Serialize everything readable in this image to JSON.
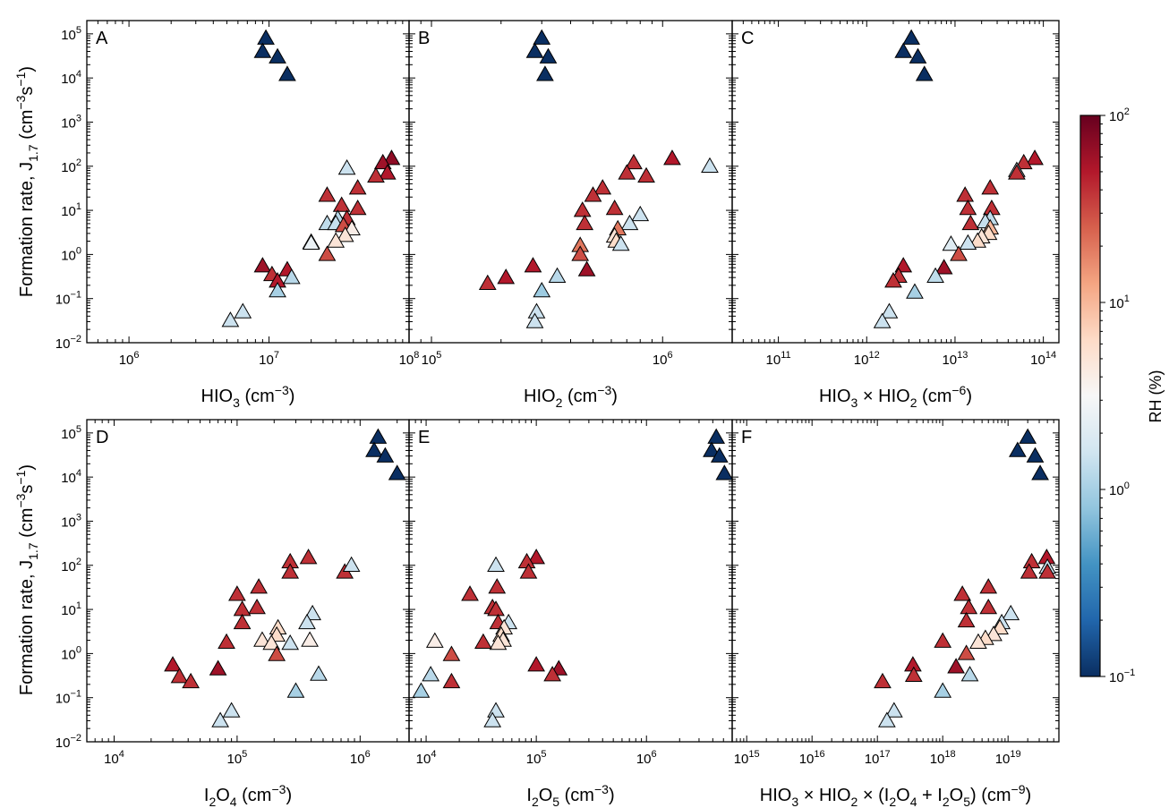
{
  "figure": {
    "ylabel": "Formation  rate, J",
    "ylabel_sub": "1.7",
    "ylabel_unit_open": " (cm",
    "ylabel_unit_exp1": "−3",
    "ylabel_unit_mid": "s",
    "ylabel_unit_exp2": "−1",
    "ylabel_unit_close": ")",
    "colorbar": {
      "label": "RH (%)",
      "scale": "log",
      "range": [
        0.1,
        100
      ],
      "ticks": [
        {
          "value": 0.1,
          "base": "10",
          "exp": "−1"
        },
        {
          "value": 1,
          "base": "10",
          "exp": "0"
        },
        {
          "value": 10,
          "base": "10",
          "exp": "1"
        },
        {
          "value": 100,
          "base": "10",
          "exp": "2"
        }
      ],
      "colormap": "RdBu_r",
      "colors": [
        "#0a2e61",
        "#2166ac",
        "#4393c3",
        "#92c5de",
        "#d1e5f0",
        "#f7f7f7",
        "#fddbc7",
        "#f4a582",
        "#d6604d",
        "#b2182b",
        "#67001f"
      ]
    },
    "colors": {
      "marker_edge": "#000000",
      "axis": "#000000"
    }
  },
  "chart_data": [
    {
      "type": "scatter",
      "panel_label": "A",
      "xlabel": [
        {
          "t": "HIO"
        },
        {
          "t": "3",
          "sub": true
        },
        {
          "t": " (cm"
        },
        {
          "t": "−3",
          "sup": true
        },
        {
          "t": ")"
        }
      ],
      "xscale": "log",
      "xlim": [
        500000,
        100000000
      ],
      "xticks": [
        {
          "value": 1000000,
          "exp": "6"
        },
        {
          "value": 10000000,
          "exp": "7"
        },
        {
          "value": 100000000,
          "exp": "8"
        }
      ],
      "yscale": "log",
      "ylim": [
        0.01,
        200000
      ],
      "points": [
        [
          9500000.0,
          80000,
          0.1
        ],
        [
          9000000.0,
          40000,
          0.1
        ],
        [
          11500000.0,
          30000,
          0.1
        ],
        [
          13500000.0,
          12000,
          0.1
        ],
        [
          75000000.0,
          150,
          70
        ],
        [
          65000000.0,
          120,
          60
        ],
        [
          70000000.0,
          70,
          50
        ],
        [
          58000000.0,
          60,
          40
        ],
        [
          36000000.0,
          90,
          1.5
        ],
        [
          43000000.0,
          32,
          40
        ],
        [
          26000000.0,
          22,
          40
        ],
        [
          33000000.0,
          13,
          40
        ],
        [
          43000000.0,
          11,
          40
        ],
        [
          36000000.0,
          6.5,
          40
        ],
        [
          31000000.0,
          6.5,
          1.2
        ],
        [
          26000000.0,
          5,
          1.3
        ],
        [
          30000000.0,
          5,
          1.4
        ],
        [
          34000000.0,
          4.5,
          30
        ],
        [
          39000000.0,
          3.8,
          4
        ],
        [
          35000000.0,
          2.7,
          5
        ],
        [
          30000000.0,
          2.0,
          5
        ],
        [
          20000000.0,
          1.9,
          40
        ],
        [
          20000000.0,
          1.8,
          2.5
        ],
        [
          26000000.0,
          1.0,
          30
        ],
        [
          9000000.0,
          0.55,
          60
        ],
        [
          13500000.0,
          0.45,
          50
        ],
        [
          10500000.0,
          0.35,
          40
        ],
        [
          11500000.0,
          0.25,
          50
        ],
        [
          14500000.0,
          0.3,
          1.2
        ],
        [
          11500000.0,
          0.15,
          1.0
        ],
        [
          6500000.0,
          0.05,
          1.5
        ],
        [
          5300000.0,
          0.032,
          1.5
        ]
      ]
    },
    {
      "type": "scatter",
      "panel_label": "B",
      "xlabel": [
        {
          "t": "HIO"
        },
        {
          "t": "2",
          "sub": true
        },
        {
          "t": " (cm"
        },
        {
          "t": "−3",
          "sup": true
        },
        {
          "t": ")"
        }
      ],
      "xscale": "log",
      "xlim": [
        80000,
        2000000
      ],
      "xticks": [
        {
          "value": 100000,
          "exp": "5"
        },
        {
          "value": 1000000,
          "exp": "6"
        }
      ],
      "yscale": "log",
      "ylim": [
        0.01,
        200000
      ],
      "points": [
        [
          300000,
          80000,
          0.1
        ],
        [
          280000,
          40000,
          0.1
        ],
        [
          320000,
          30000,
          0.1
        ],
        [
          310000,
          12000,
          0.1
        ],
        [
          1100000,
          150,
          50
        ],
        [
          750000,
          120,
          40
        ],
        [
          1600000,
          100,
          1.5
        ],
        [
          700000,
          70,
          40
        ],
        [
          850000,
          60,
          40
        ],
        [
          550000,
          32,
          40
        ],
        [
          500000,
          22,
          40
        ],
        [
          620000,
          11,
          40
        ],
        [
          450000,
          10,
          40
        ],
        [
          460000,
          5,
          40
        ],
        [
          800000,
          8,
          1.5
        ],
        [
          720000,
          5,
          1.5
        ],
        [
          640000,
          3.8,
          20
        ],
        [
          620000,
          2.6,
          5
        ],
        [
          630000,
          2.0,
          6
        ],
        [
          660000,
          1.7,
          1.5
        ],
        [
          440000,
          1.6,
          20
        ],
        [
          440000,
          1.0,
          30
        ],
        [
          275000,
          0.55,
          50
        ],
        [
          470000,
          0.45,
          60
        ],
        [
          210000,
          0.3,
          50
        ],
        [
          175000,
          0.22,
          40
        ],
        [
          350000,
          0.32,
          1.2
        ],
        [
          300000,
          0.15,
          0.9
        ],
        [
          285000,
          0.05,
          1.5
        ],
        [
          280000,
          0.03,
          1.5
        ]
      ]
    },
    {
      "type": "scatter",
      "panel_label": "C",
      "xlabel": [
        {
          "t": "HIO"
        },
        {
          "t": "3",
          "sub": true
        },
        {
          "t": " × HIO"
        },
        {
          "t": "2",
          "sub": true
        },
        {
          "t": " (cm"
        },
        {
          "t": "−6",
          "sup": true
        },
        {
          "t": ")"
        }
      ],
      "xscale": "log",
      "xlim": [
        30000000000,
        150000000000000
      ],
      "xticks": [
        {
          "value": 100000000000.0,
          "exp": "11"
        },
        {
          "value": 1000000000000.0,
          "exp": "12"
        },
        {
          "value": 10000000000000.0,
          "exp": "13"
        },
        {
          "value": 100000000000000.0,
          "exp": "14"
        }
      ],
      "yscale": "log",
      "ylim": [
        0.01,
        200000
      ],
      "points": [
        [
          3200000000000.0,
          80000,
          0.1
        ],
        [
          2600000000000.0,
          40000,
          0.1
        ],
        [
          3800000000000.0,
          30000,
          0.1
        ],
        [
          4500000000000.0,
          12000,
          0.1
        ],
        [
          80000000000000.0,
          150,
          50
        ],
        [
          60000000000000.0,
          120,
          40
        ],
        [
          50000000000000.0,
          80,
          1.5
        ],
        [
          50000000000000.0,
          70,
          40
        ],
        [
          25000000000000.0,
          32,
          40
        ],
        [
          13000000000000.0,
          22,
          40
        ],
        [
          14000000000000.0,
          11,
          40
        ],
        [
          26000000000000.0,
          11,
          40
        ],
        [
          25000000000000.0,
          6.5,
          1.3
        ],
        [
          22000000000000.0,
          5.5,
          1.4
        ],
        [
          15000000000000.0,
          5,
          40
        ],
        [
          25000000000000.0,
          4.0,
          10
        ],
        [
          24000000000000.0,
          3.0,
          6
        ],
        [
          20000000000000.0,
          2.5,
          5
        ],
        [
          18000000000000.0,
          2.0,
          6
        ],
        [
          14000000000000.0,
          1.8,
          1.5
        ],
        [
          9000000000000.0,
          1.7,
          2.0
        ],
        [
          11000000000000.0,
          1.0,
          30
        ],
        [
          2600000000000.0,
          0.55,
          50
        ],
        [
          2300000000000.0,
          0.32,
          40
        ],
        [
          2000000000000.0,
          0.25,
          40
        ],
        [
          7500000000000.0,
          0.5,
          60
        ],
        [
          6000000000000.0,
          0.32,
          1.3
        ],
        [
          3500000000000.0,
          0.14,
          1.0
        ],
        [
          1800000000000.0,
          0.05,
          1.5
        ],
        [
          1500000000000.0,
          0.03,
          1.5
        ]
      ]
    },
    {
      "type": "scatter",
      "panel_label": "D",
      "xlabel": [
        {
          "t": "I"
        },
        {
          "t": "2",
          "sub": true
        },
        {
          "t": "O"
        },
        {
          "t": "4",
          "sub": true
        },
        {
          "t": " (cm"
        },
        {
          "t": "−3",
          "sup": true
        },
        {
          "t": ")"
        }
      ],
      "xscale": "log",
      "xlim": [
        6000,
        2500000
      ],
      "xticks": [
        {
          "value": 10000,
          "exp": "4"
        },
        {
          "value": 100000,
          "exp": "5"
        },
        {
          "value": 1000000,
          "exp": "6"
        }
      ],
      "yscale": "log",
      "ylim": [
        0.01,
        200000
      ],
      "points": [
        [
          1400000,
          80000,
          0.1
        ],
        [
          1300000,
          40000,
          0.1
        ],
        [
          1600000,
          30000,
          0.1
        ],
        [
          2000000,
          12000,
          0.1
        ],
        [
          380000,
          150,
          40
        ],
        [
          270000,
          120,
          40
        ],
        [
          270000,
          70,
          40
        ],
        [
          750000,
          70,
          40
        ],
        [
          850000,
          100,
          1.5
        ],
        [
          150000,
          32,
          40
        ],
        [
          100000,
          22,
          40
        ],
        [
          145000,
          11,
          40
        ],
        [
          110000,
          10,
          40
        ],
        [
          110000,
          5,
          40
        ],
        [
          410000,
          8,
          1.5
        ],
        [
          370000,
          5,
          1.5
        ],
        [
          215000,
          3.8,
          6
        ],
        [
          210000,
          2.6,
          6
        ],
        [
          160000,
          2.0,
          5
        ],
        [
          190000,
          1.7,
          5
        ],
        [
          270000,
          1.7,
          1.5
        ],
        [
          390000,
          2.0,
          4
        ],
        [
          82000,
          1.8,
          40
        ],
        [
          210000,
          0.95,
          30
        ],
        [
          30000,
          0.55,
          50
        ],
        [
          70000,
          0.45,
          60
        ],
        [
          34000,
          0.3,
          40
        ],
        [
          42000,
          0.23,
          40
        ],
        [
          460000,
          0.34,
          1.2
        ],
        [
          300000,
          0.14,
          1.0
        ],
        [
          90000,
          0.05,
          1.5
        ],
        [
          73000,
          0.03,
          1.5
        ]
      ]
    },
    {
      "type": "scatter",
      "panel_label": "E",
      "xlabel": [
        {
          "t": "I"
        },
        {
          "t": "2",
          "sub": true
        },
        {
          "t": "O"
        },
        {
          "t": "5",
          "sub": true
        },
        {
          "t": " (cm"
        },
        {
          "t": "−3",
          "sup": true
        },
        {
          "t": ")"
        }
      ],
      "xscale": "log",
      "xlim": [
        7000,
        6000000
      ],
      "xticks": [
        {
          "value": 10000,
          "exp": "4"
        },
        {
          "value": 100000,
          "exp": "5"
        },
        {
          "value": 1000000,
          "exp": "6"
        }
      ],
      "yscale": "log",
      "ylim": [
        0.01,
        200000
      ],
      "points": [
        [
          4300000,
          80000,
          0.1
        ],
        [
          3900000,
          40000,
          0.1
        ],
        [
          4600000,
          30000,
          0.1
        ],
        [
          5100000,
          12000,
          0.1
        ],
        [
          100000,
          150,
          50
        ],
        [
          82000,
          120,
          40
        ],
        [
          85000,
          70,
          40
        ],
        [
          43000,
          100,
          1.5
        ],
        [
          44000,
          32,
          40
        ],
        [
          25000,
          22,
          40
        ],
        [
          40000,
          11,
          40
        ],
        [
          43000,
          10,
          40
        ],
        [
          45000,
          5,
          40
        ],
        [
          56000,
          5,
          1.5
        ],
        [
          51000,
          3.8,
          5
        ],
        [
          48000,
          2.6,
          6
        ],
        [
          50000,
          2.0,
          5
        ],
        [
          45000,
          1.7,
          5
        ],
        [
          12000,
          1.9,
          4
        ],
        [
          33000,
          1.8,
          40
        ],
        [
          17000,
          0.95,
          30
        ],
        [
          100000,
          0.55,
          50
        ],
        [
          160000,
          0.45,
          60
        ],
        [
          140000,
          0.33,
          40
        ],
        [
          17000,
          0.23,
          40
        ],
        [
          11000,
          0.33,
          1.2
        ],
        [
          9000,
          0.14,
          1.0
        ],
        [
          43000,
          0.05,
          1.5
        ],
        [
          40000,
          0.03,
          1.5
        ]
      ]
    },
    {
      "type": "scatter",
      "panel_label": "F",
      "xlabel": [
        {
          "t": "HIO"
        },
        {
          "t": "3",
          "sub": true
        },
        {
          "t": " × HIO"
        },
        {
          "t": "2",
          "sub": true
        },
        {
          "t": " × (I"
        },
        {
          "t": "2",
          "sub": true
        },
        {
          "t": "O"
        },
        {
          "t": "4",
          "sub": true
        },
        {
          "t": " + I"
        },
        {
          "t": "2",
          "sub": true
        },
        {
          "t": "O"
        },
        {
          "t": "5",
          "sub": true
        },
        {
          "t": ") (cm"
        },
        {
          "t": "−9",
          "sup": true
        },
        {
          "t": ")"
        }
      ],
      "xscale": "log",
      "xlim": [
        600000000000000.0,
        6e+19
      ],
      "xticks": [
        {
          "value": 1000000000000000.0,
          "exp": "15"
        },
        {
          "value": 1e+16,
          "exp": "16"
        },
        {
          "value": 1e+17,
          "exp": "17"
        },
        {
          "value": 1e+18,
          "exp": "18"
        },
        {
          "value": 1e+19,
          "exp": "19"
        }
      ],
      "yscale": "log",
      "ylim": [
        0.01,
        200000
      ],
      "points": [
        [
          2e+19,
          80000,
          0.1
        ],
        [
          1.4e+19,
          40000,
          0.1
        ],
        [
          2.6e+19,
          30000,
          0.1
        ],
        [
          3.1e+19,
          12000,
          0.1
        ],
        [
          3.9e+19,
          150,
          50
        ],
        [
          2.3e+19,
          120,
          40
        ],
        [
          4e+19,
          90,
          1.5
        ],
        [
          2.1e+19,
          70,
          40
        ],
        [
          4e+19,
          70,
          40
        ],
        [
          5e+18,
          32,
          40
        ],
        [
          2e+18,
          22,
          40
        ],
        [
          2.5e+18,
          11,
          40
        ],
        [
          5e+18,
          11,
          40
        ],
        [
          2.3e+18,
          5.5,
          40
        ],
        [
          1.1e+19,
          8,
          1.5
        ],
        [
          8e+18,
          5,
          1.5
        ],
        [
          7.5e+18,
          3.8,
          6
        ],
        [
          6e+18,
          2.7,
          5
        ],
        [
          4.5e+18,
          2.2,
          6
        ],
        [
          3.5e+18,
          1.8,
          5
        ],
        [
          1e+18,
          1.9,
          40
        ],
        [
          2.3e+18,
          1.0,
          30
        ],
        [
          3.5e+17,
          0.55,
          50
        ],
        [
          1.6e+18,
          0.5,
          60
        ],
        [
          3.6e+17,
          0.32,
          40
        ],
        [
          1.2e+17,
          0.23,
          40
        ],
        [
          2.6e+18,
          0.33,
          1.2
        ],
        [
          1e+18,
          0.14,
          1.0
        ],
        [
          1.8e+17,
          0.05,
          1.5
        ],
        [
          1.4e+17,
          0.03,
          1.5
        ]
      ]
    }
  ]
}
